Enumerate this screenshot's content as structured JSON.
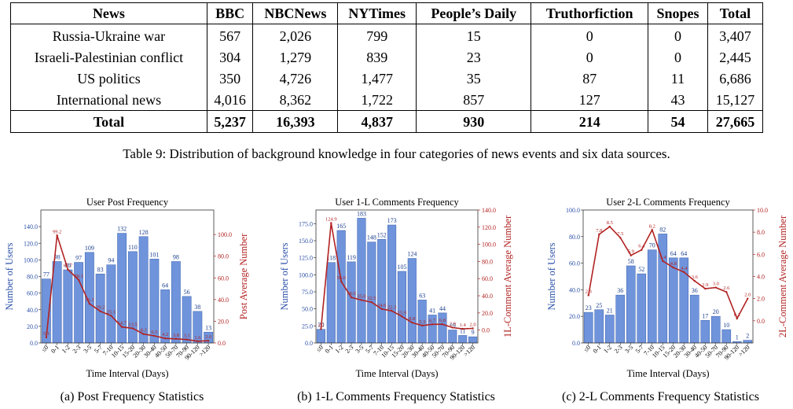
{
  "table": {
    "headers": [
      "News",
      "BBC",
      "NBCNews",
      "NYTimes",
      "People’s Daily",
      "Truthorfiction",
      "Snopes",
      "Total"
    ],
    "rows": [
      [
        "Russia-Ukraine war",
        "567",
        "2,026",
        "799",
        "15",
        "0",
        "0",
        "3,407"
      ],
      [
        "Israeli-Palestinian conflict",
        "304",
        "1,279",
        "839",
        "23",
        "0",
        "0",
        "2,445"
      ],
      [
        "US politics",
        "350",
        "4,726",
        "1,477",
        "35",
        "87",
        "11",
        "6,686"
      ],
      [
        "International news",
        "4,016",
        "8,362",
        "1,722",
        "857",
        "127",
        "43",
        "15,127"
      ]
    ],
    "total_row": [
      "Total",
      "5,237",
      "16,393",
      "4,837",
      "930",
      "214",
      "54",
      "27,665"
    ],
    "caption": "Table 9: Distribution of background knowledge in four categories of news events and six data sources."
  },
  "figures": [
    {
      "subcaption": "(a) Post Frequency Statistics"
    },
    {
      "subcaption": "(b) 1-L Comments Frequency Statistics"
    },
    {
      "subcaption": "(c) 2-L Comments Frequency Statistics"
    }
  ],
  "colors": {
    "bar": "#6f94dc",
    "bar_edge": "#4b6fb8",
    "line": "#b22222",
    "left_axis": "#2a4fa8",
    "right_axis": "#b22222"
  },
  "chart_data": [
    {
      "type": "bar",
      "title": "User Post Frequency",
      "xlabel": "Time Interval (Days)",
      "ylabel": "Number of Users",
      "y2label": "Post Average Number",
      "categories": [
        "≤0",
        "0-1",
        "1-2",
        "2-3",
        "3-5",
        "5-7",
        "7-10",
        "10-15",
        "15-20",
        "20-30",
        "30-40",
        "40-50",
        "50-70",
        "70-90",
        "90-120",
        ">120"
      ],
      "ylim": [
        0,
        160
      ],
      "yticks": [
        0,
        20,
        40,
        60,
        80,
        100,
        120,
        140
      ],
      "ytick_labels": [
        "0.0",
        "20.0",
        "40.0",
        "60.0",
        "80.0",
        "100.0",
        "120.0",
        "140.0"
      ],
      "y2lim": [
        0,
        122.6
      ],
      "y2ticks": [
        0,
        20,
        40,
        60,
        80,
        100
      ],
      "y2tick_labels": [
        "0.0",
        "20.0",
        "40.0",
        "60.0",
        "80.0",
        "100.0"
      ],
      "series": [
        {
          "name": "Number of Users",
          "kind": "bar",
          "axis": "left",
          "values": [
            77,
            98,
            88,
            97,
            109,
            83,
            94,
            132,
            110,
            128,
            101,
            64,
            98,
            56,
            38,
            13
          ]
        },
        {
          "name": "Post Average Number",
          "kind": "line",
          "axis": "right",
          "values": [
            5.1,
            99.2,
            67.7,
            58.1,
            36.1,
            29.2,
            25.1,
            14.7,
            13.5,
            8.2,
            6.5,
            4.2,
            3.8,
            3.1,
            1.6,
            2.0
          ]
        }
      ]
    },
    {
      "type": "bar",
      "title": "User 1-L Comments Frequency",
      "xlabel": "Time Interval (Days)",
      "ylabel": "Number of Users",
      "y2label": "1L-Comment Average Number",
      "categories": [
        "≤0",
        "0-1",
        "1-2",
        "2-3",
        "3-5",
        "5-7",
        "7-10",
        "10-15",
        "15-20",
        "20-30",
        "30-40",
        "40-50",
        "50-70",
        "70-90",
        "90-120",
        ">120"
      ],
      "ylim": [
        0,
        195
      ],
      "yticks": [
        0,
        25,
        50,
        75,
        100,
        125,
        150,
        175
      ],
      "ytick_labels": [
        "0.0",
        "25.0",
        "50.0",
        "75.0",
        "100.0",
        "125.0",
        "150.0",
        "175.0"
      ],
      "y2lim": [
        -15,
        140
      ],
      "y2ticks": [
        0,
        20,
        40,
        60,
        80,
        100,
        120,
        140
      ],
      "y2tick_labels": [
        "0.0",
        "20.0",
        "40.0",
        "60.0",
        "80.0",
        "100.0",
        "120.0",
        "140.0"
      ],
      "series": [
        {
          "name": "Number of Users",
          "kind": "bar",
          "axis": "left",
          "values": [
            20,
            118,
            165,
            119,
            183,
            148,
            152,
            173,
            105,
            124,
            63,
            41,
            44,
            19,
            11,
            9
          ]
        },
        {
          "name": "1L-Comment Average Number",
          "kind": "line",
          "axis": "right",
          "values": [
            1.2,
            124.9,
            56.6,
            38.0,
            35.0,
            32.5,
            24.6,
            22.3,
            15.9,
            8.8,
            5.3,
            6.7,
            6.8,
            2.9,
            1.4,
            2.0
          ]
        }
      ]
    },
    {
      "type": "bar",
      "title": "User 2-L Comments Frequency",
      "xlabel": "Time Interval (Days)",
      "ylabel": "Number of Users",
      "y2label": "2L-Comment Average Number",
      "categories": [
        "≤0",
        "0-1",
        "1-2",
        "2-3",
        "3-5",
        "5-7",
        "7-10",
        "10-15",
        "15-20",
        "20-30",
        "30-40",
        "40-50",
        "50-70",
        "70-90",
        "90-120",
        ">120"
      ],
      "ylim": [
        0,
        100
      ],
      "yticks": [
        0,
        20,
        40,
        60,
        80,
        100
      ],
      "ytick_labels": [
        "0.0",
        "20.0",
        "40.0",
        "60.0",
        "80.0",
        "100.0"
      ],
      "y2lim": [
        -2,
        10
      ],
      "y2ticks": [
        0,
        2,
        4,
        6,
        8,
        10
      ],
      "y2tick_labels": [
        "0.0",
        "2.0",
        "4.0",
        "6.0",
        "8.0",
        "10.0"
      ],
      "series": [
        {
          "name": "Number of Users",
          "kind": "bar",
          "axis": "left",
          "values": [
            23,
            25,
            21,
            36,
            58,
            52,
            70,
            82,
            64,
            64,
            36,
            17,
            20,
            10,
            1,
            2
          ]
        },
        {
          "name": "2L-Comment Average Number",
          "kind": "line",
          "axis": "right",
          "values": [
            2.3,
            7.8,
            8.5,
            7.5,
            5.9,
            6.4,
            8.2,
            5.4,
            4.8,
            4.4,
            3.6,
            2.9,
            3.0,
            2.6,
            0.2,
            2.0
          ]
        }
      ]
    }
  ]
}
